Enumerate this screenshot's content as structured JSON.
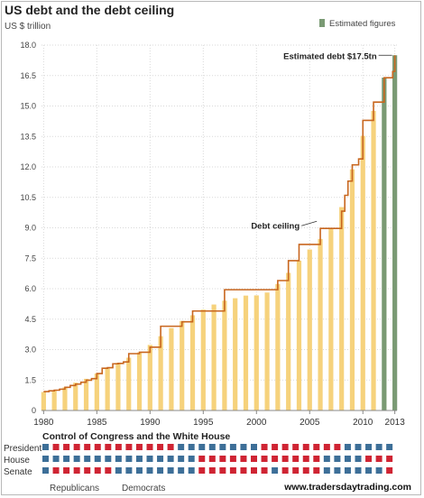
{
  "chart_data": {
    "type": "bar",
    "title": "US debt and the debt ceiling",
    "ylabel": "US $ trillion",
    "ylim": [
      0,
      18
    ],
    "yticks": [
      "0",
      "1.5",
      "3.0",
      "4.5",
      "6.0",
      "7.5",
      "9.0",
      "10.5",
      "12.0",
      "13.5",
      "15.0",
      "16.5",
      "18.0"
    ],
    "xlim": [
      1979.8,
      2013.2
    ],
    "xticks": [
      "1980",
      "1985",
      "1990",
      "1995",
      "2000",
      "2005",
      "2010",
      "2013"
    ],
    "grid": true,
    "legend": {
      "position": "top-right",
      "label": "Estimated figures",
      "color": "#7a9a74"
    },
    "bar_color": "#f6d27c",
    "estimated_color": "#7a9a74",
    "ceiling_color": "#c8661e",
    "series": [
      {
        "name": "US debt",
        "x": [
          1980,
          1981,
          1982,
          1983,
          1984,
          1985,
          1986,
          1987,
          1988,
          1989,
          1990,
          1991,
          1992,
          1993,
          1994,
          1995,
          1996,
          1997,
          1998,
          1999,
          2000,
          2001,
          2002,
          2003,
          2004,
          2005,
          2006,
          2007,
          2008,
          2009,
          2010,
          2011,
          2012,
          2013
        ],
        "values": [
          0.91,
          1.0,
          1.14,
          1.37,
          1.56,
          1.82,
          2.12,
          2.35,
          2.6,
          2.86,
          3.23,
          3.66,
          4.06,
          4.41,
          4.69,
          4.97,
          5.22,
          5.41,
          5.53,
          5.66,
          5.67,
          5.81,
          6.23,
          6.78,
          7.38,
          7.93,
          8.45,
          8.95,
          10.02,
          11.88,
          13.53,
          14.76,
          16.4,
          17.5
        ],
        "estimated": [
          false,
          false,
          false,
          false,
          false,
          false,
          false,
          false,
          false,
          false,
          false,
          false,
          false,
          false,
          false,
          false,
          false,
          false,
          false,
          false,
          false,
          false,
          false,
          false,
          false,
          false,
          false,
          false,
          false,
          false,
          false,
          false,
          true,
          true
        ]
      },
      {
        "name": "Debt ceiling",
        "type": "step",
        "x": [
          1980,
          1980.5,
          1981,
          1981.5,
          1982,
          1982.5,
          1983,
          1983.5,
          1984,
          1984.5,
          1985,
          1985.5,
          1986,
          1986.5,
          1987,
          1987.5,
          1988,
          1989,
          1990,
          1991,
          1993,
          1994,
          1996,
          1997,
          2002,
          2003,
          2004,
          2005,
          2006,
          2007,
          2008,
          2008.3,
          2008.6,
          2009,
          2009.6,
          2010,
          2011,
          2011.5,
          2012,
          2012.3,
          2012.8,
          2013
        ],
        "values": [
          0.93,
          0.97,
          1.0,
          1.05,
          1.14,
          1.23,
          1.3,
          1.39,
          1.49,
          1.57,
          1.82,
          2.08,
          2.11,
          2.3,
          2.32,
          2.39,
          2.8,
          2.87,
          3.12,
          4.15,
          4.37,
          4.9,
          4.9,
          5.95,
          6.4,
          7.38,
          8.18,
          8.18,
          8.97,
          8.97,
          9.82,
          10.6,
          11.3,
          12.1,
          12.39,
          14.29,
          15.19,
          15.19,
          16.39,
          16.39,
          16.7,
          17.5
        ]
      }
    ],
    "annotations": [
      {
        "text": "Estimated debt $17.5tn",
        "x": 2013,
        "y": 17.5
      },
      {
        "text": "Debt ceiling",
        "x": 2005.5,
        "y": 9.1
      }
    ]
  },
  "control": {
    "title": "Control of Congress and the White House",
    "rows": [
      {
        "label": "President",
        "pattern": "BRRRRRRRRRRRRBBBBBBBBRRRRRRRRBBBBB"
      },
      {
        "label": "House",
        "pattern": "BBBBBBBBBBBBBBBRRRRRRRRRRRRBBBBRRR"
      },
      {
        "label": "Senate",
        "pattern": "BRRRRRRBBBBBBBBRRRRRRRBRRRRBBBBBBR"
      }
    ],
    "republican_color": "#cf2433",
    "democrat_color": "#3d6f98",
    "legend": {
      "republicans": "Republicans",
      "democrats": "Democrats"
    }
  },
  "footer": {
    "website": "www.tradersdaytrading.com"
  }
}
